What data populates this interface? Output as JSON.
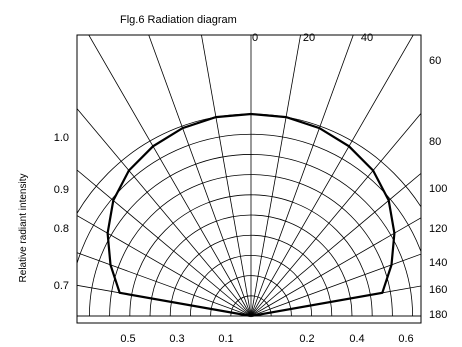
{
  "chart_data": {
    "type": "polar",
    "title": "Flg.6 Radiation diagram",
    "ylabel": "Relative radiant intensity",
    "top_angle_labels": [
      "0",
      "20",
      "40"
    ],
    "right_angle_labels": [
      "60",
      "80",
      "100",
      "120",
      "140",
      "160",
      "180"
    ],
    "left_intensity_labels": [
      "1.0",
      "0.9",
      "0.8",
      "0.7"
    ],
    "bottom_intensity_labels_left": [
      "0.5",
      "0.3",
      "0.1"
    ],
    "bottom_intensity_labels_right": [
      "0.2",
      "0.4",
      "0.6"
    ],
    "grid_angles_deg": [
      -90,
      -80,
      -70,
      -60,
      -50,
      -40,
      -30,
      -20,
      -10,
      0,
      10,
      20,
      30,
      40,
      50,
      60,
      70,
      80,
      90
    ],
    "grid_radii": [
      0.1,
      0.2,
      0.3,
      0.4,
      0.5,
      0.6,
      0.7,
      0.8,
      0.9,
      1.0
    ],
    "series": [
      {
        "angle_deg": [
          0,
          10,
          20,
          30,
          40,
          50,
          60,
          70,
          80,
          90
        ],
        "relative_intensity": [
          1.0,
          1.0,
          0.99,
          0.97,
          0.94,
          0.89,
          0.82,
          0.74,
          0.66,
          0.0
        ]
      }
    ]
  }
}
